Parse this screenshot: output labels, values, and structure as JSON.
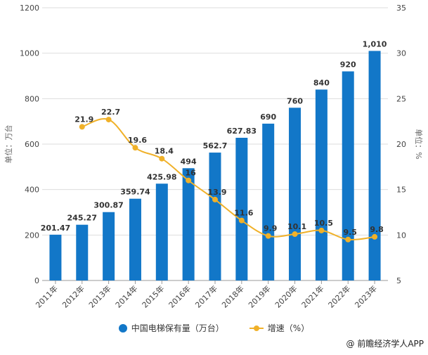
{
  "chart_data": {
    "type": "bar+line",
    "categories": [
      "2011年",
      "2012年",
      "2013年",
      "2014年",
      "2015年",
      "2016年",
      "2017年",
      "2018年",
      "2019年",
      "2020年",
      "2021年",
      "2022年",
      "2023年"
    ],
    "series": [
      {
        "name": "中国电梯保有量（万台）",
        "type": "bar",
        "axis": "left",
        "color": "#1277c8",
        "values": [
          201.47,
          245.27,
          300.87,
          359.74,
          425.98,
          494,
          562.7,
          627.83,
          690,
          760,
          840,
          920,
          1010
        ],
        "labels": [
          "201.47",
          "245.27",
          "300.87",
          "359.74",
          "425.98",
          "494",
          "562.7",
          "627.83",
          "690",
          "760",
          "840",
          "920",
          "1,010"
        ]
      },
      {
        "name": "增速（%）",
        "type": "line",
        "axis": "right",
        "color": "#f0b129",
        "values": [
          null,
          21.9,
          22.7,
          19.6,
          18.4,
          16,
          13.9,
          11.6,
          9.9,
          10.1,
          10.5,
          9.5,
          9.8
        ],
        "labels": [
          "",
          "21.9",
          "22.7",
          "19.6",
          "18.4",
          "16",
          "13.9",
          "11.6",
          "9.9",
          "10.1",
          "10.5",
          "9.5",
          "9.8"
        ]
      }
    ],
    "ylabel": "单位：万台",
    "y2label": "单位：%",
    "ylim": [
      0,
      1200
    ],
    "yticks": [
      0,
      200,
      400,
      600,
      800,
      1000,
      1200
    ],
    "y2lim": [
      5,
      35
    ],
    "y2ticks": [
      5,
      10,
      15,
      20,
      25,
      30,
      35
    ],
    "grid": true,
    "legend_position": "bottom"
  },
  "legend": {
    "bar": "中国电梯保有量（万台）",
    "line": "增速（%）"
  },
  "credit": "@ 前瞻经济学人APP"
}
